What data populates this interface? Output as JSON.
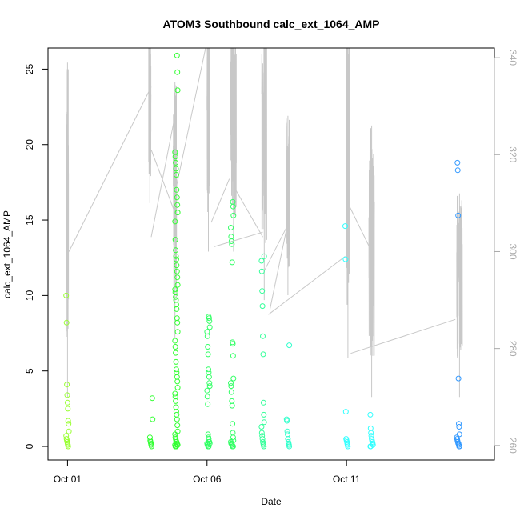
{
  "chart_data": {
    "type": "scatter",
    "title": "ATOM3 Southbound calc_ext_1064_AMP",
    "xlabel": "Date",
    "ylabel": "calc_ext_1064_AMP",
    "x_ticks": [
      "Oct 01",
      "Oct 06",
      "Oct 11"
    ],
    "x_tick_days": [
      1,
      6,
      11
    ],
    "xlim_days": [
      0.3,
      16.3
    ],
    "ylim": [
      -0.9,
      26.4
    ],
    "y_ticks": [
      0,
      5,
      10,
      15,
      20,
      25
    ],
    "y2lim": [
      257,
      342
    ],
    "y2_ticks": [
      260,
      280,
      300,
      320,
      340
    ],
    "colors": {
      "scatter_palette": [
        "#99ff33",
        "#66ff33",
        "#33ff33",
        "#33ff66",
        "#33ff99",
        "#33ffcc",
        "#33ffff",
        "#33ccff",
        "#3399ff"
      ],
      "line": "#c8c8c8",
      "axis": "#000000",
      "right_axis": "#aaaaaa"
    },
    "series": [
      {
        "role": "points",
        "x_days": [
          1.0,
          1.0,
          1.0,
          1.0,
          1.0,
          1.0,
          1.0,
          1.0,
          1.0,
          1.0,
          1.0,
          1.0,
          1.0,
          1.0,
          1.0,
          1.0,
          4.0,
          4.0,
          4.0,
          4.0,
          4.0,
          4.0,
          4.0,
          4.0,
          4.9,
          4.9,
          4.9,
          4.9,
          4.9,
          4.9,
          4.9,
          4.9,
          4.9,
          4.9,
          4.9,
          4.9,
          4.9,
          4.9,
          4.9,
          4.9,
          4.9,
          4.9,
          4.9,
          4.9,
          4.9,
          4.9,
          4.9,
          4.9,
          4.9,
          4.9,
          4.9,
          4.9,
          4.9,
          4.9,
          4.9,
          4.9,
          4.9,
          4.9,
          4.9,
          4.9,
          4.9,
          4.9,
          4.9,
          4.9,
          4.9,
          4.9,
          4.9,
          4.9,
          4.9,
          4.9,
          4.9,
          4.9,
          4.9,
          4.9,
          4.9,
          4.9,
          4.9,
          4.9,
          4.9,
          4.9,
          4.9,
          4.9,
          4.9,
          4.9,
          4.9,
          4.9,
          6.05,
          6.05,
          6.05,
          6.05,
          6.05,
          6.05,
          6.05,
          6.05,
          6.05,
          6.05,
          6.05,
          6.05,
          6.05,
          6.05,
          6.05,
          6.05,
          6.05,
          6.05,
          6.05,
          6.05,
          6.05,
          6.05,
          6.05,
          6.05,
          6.05,
          6.05,
          6.05,
          6.05,
          6.9,
          6.9,
          6.9,
          6.9,
          6.9,
          6.9,
          6.9,
          6.9,
          6.9,
          6.9,
          6.9,
          6.9,
          6.9,
          6.9,
          6.9,
          6.9,
          6.9,
          6.9,
          6.9,
          6.9,
          6.9,
          6.9,
          6.9,
          6.9,
          6.9,
          6.9,
          6.9,
          6.9,
          6.9,
          8.0,
          8.0,
          8.0,
          8.0,
          8.0,
          8.0,
          8.0,
          8.0,
          8.0,
          8.0,
          8.0,
          8.0,
          8.0,
          8.0,
          8.0,
          8.0,
          8.0,
          8.0,
          8.9,
          8.9,
          8.9,
          8.9,
          8.9,
          8.9,
          8.9,
          8.9,
          8.9,
          8.9,
          11.0,
          11.0,
          11.0,
          11.0,
          11.0,
          11.0,
          11.0,
          11.0,
          11.0,
          11.9,
          11.9,
          11.9,
          11.9,
          11.9,
          11.9,
          11.9,
          11.9,
          11.9,
          11.9,
          11.9,
          15.0,
          15.0,
          15.0,
          15.0,
          15.0,
          15.0,
          15.0,
          15.0,
          15.0,
          15.0,
          15.0,
          15.0,
          15.0,
          15.0,
          15.0,
          15.0
        ],
        "y": [
          10.0,
          8.2,
          4.1,
          3.4,
          2.9,
          2.5,
          1.7,
          1.5,
          1.0,
          0.7,
          0.5,
          0.4,
          0.3,
          0.2,
          0.1,
          0.0,
          3.2,
          1.8,
          0.6,
          0.4,
          0.3,
          0.2,
          0.1,
          0.0,
          25.9,
          24.8,
          23.6,
          19.5,
          19.2,
          18.8,
          18.4,
          18.0,
          17.0,
          16.5,
          16.0,
          15.5,
          14.9,
          13.7,
          13.0,
          12.6,
          12.4,
          12.0,
          11.6,
          11.2,
          10.7,
          10.4,
          10.2,
          9.9,
          9.7,
          9.4,
          9.1,
          8.5,
          8.2,
          7.6,
          7.0,
          6.6,
          6.2,
          5.6,
          5.1,
          4.9,
          4.6,
          4.3,
          3.9,
          3.5,
          3.3,
          3.0,
          2.6,
          2.3,
          2.1,
          1.8,
          1.4,
          1.0,
          0.8,
          0.6,
          0.5,
          0.4,
          0.3,
          0.3,
          0.2,
          0.1,
          0.1,
          0.1,
          0.0,
          0.0,
          0.0,
          0.0,
          8.6,
          8.5,
          8.3,
          7.9,
          7.6,
          7.3,
          6.6,
          6.1,
          5.1,
          4.9,
          4.6,
          4.2,
          4.0,
          3.7,
          3.3,
          2.8,
          0.8,
          0.6,
          0.5,
          0.3,
          0.3,
          0.2,
          0.2,
          0.1,
          0.1,
          0.0,
          0.0,
          0.0,
          16.2,
          15.9,
          15.3,
          14.5,
          13.9,
          13.6,
          13.4,
          12.2,
          6.9,
          6.8,
          6.0,
          4.5,
          4.2,
          4.0,
          3.6,
          3.0,
          2.7,
          1.5,
          0.9,
          0.6,
          0.4,
          0.3,
          0.2,
          0.2,
          0.1,
          0.1,
          0.0,
          0.0,
          0.0,
          12.6,
          12.3,
          11.6,
          10.3,
          9.3,
          7.3,
          6.1,
          2.9,
          2.1,
          1.6,
          1.3,
          0.9,
          0.7,
          0.5,
          0.3,
          0.2,
          0.1,
          0.0,
          6.7,
          1.8,
          1.7,
          1.0,
          0.8,
          0.5,
          0.3,
          0.2,
          0.1,
          0.0,
          14.6,
          12.4,
          2.3,
          0.5,
          0.4,
          0.3,
          0.2,
          0.1,
          0.0,
          2.1,
          1.2,
          0.9,
          0.7,
          0.5,
          0.4,
          0.3,
          0.2,
          0.1,
          0.0,
          0.0,
          18.8,
          18.3,
          15.3,
          4.5,
          1.5,
          1.3,
          0.8,
          0.6,
          0.5,
          0.4,
          0.3,
          0.2,
          0.2,
          0.1,
          0.0,
          0.0
        ]
      },
      {
        "role": "line-right-axis",
        "bursts": [
          {
            "x_center": 1.0,
            "x_width": 0.07,
            "y_low": 270,
            "y_high": 339
          },
          {
            "x_center": 3.95,
            "x_width": 0.08,
            "y_low": 310,
            "y_high": 347
          },
          {
            "x_center": 4.85,
            "x_width": 0.12,
            "y_low": 282,
            "y_high": 335
          },
          {
            "x_center": 6.05,
            "x_width": 0.1,
            "y_low": 300,
            "y_high": 349
          },
          {
            "x_center": 6.95,
            "x_width": 0.2,
            "y_low": 300,
            "y_high": 349
          },
          {
            "x_center": 8.05,
            "x_width": 0.18,
            "y_low": 290,
            "y_high": 352
          },
          {
            "x_center": 8.9,
            "x_width": 0.12,
            "y_low": 291,
            "y_high": 328
          },
          {
            "x_center": 11.05,
            "x_width": 0.1,
            "y_low": 278,
            "y_high": 351
          },
          {
            "x_center": 11.9,
            "x_width": 0.2,
            "y_low": 270,
            "y_high": 326
          },
          {
            "x_center": 15.05,
            "x_width": 0.2,
            "y_low": 270,
            "y_high": 312
          }
        ],
        "connectors": [
          [
            [
              1.05,
              300
            ],
            [
              4.0,
              334
            ]
          ],
          [
            [
              4.0,
              321
            ],
            [
              4.85,
              308
            ]
          ],
          [
            [
              4.0,
              303
            ],
            [
              4.85,
              328
            ]
          ],
          [
            [
              4.85,
              312
            ],
            [
              5.95,
              349
            ]
          ],
          [
            [
              6.15,
              347
            ],
            [
              6.8,
              343
            ]
          ],
          [
            [
              6.15,
              306
            ],
            [
              6.8,
              315
            ]
          ],
          [
            [
              6.25,
              301
            ],
            [
              8.0,
              304
            ]
          ],
          [
            [
              7.0,
              313
            ],
            [
              8.0,
              303
            ]
          ],
          [
            [
              8.05,
              296
            ],
            [
              8.85,
              305
            ]
          ],
          [
            [
              8.25,
              288
            ],
            [
              8.9,
              306
            ]
          ],
          [
            [
              8.2,
              287
            ],
            [
              10.95,
              299
            ]
          ],
          [
            [
              11.15,
              279
            ],
            [
              14.9,
              286
            ]
          ],
          [
            [
              11.05,
              310
            ],
            [
              11.9,
              300
            ]
          ]
        ]
      }
    ]
  }
}
